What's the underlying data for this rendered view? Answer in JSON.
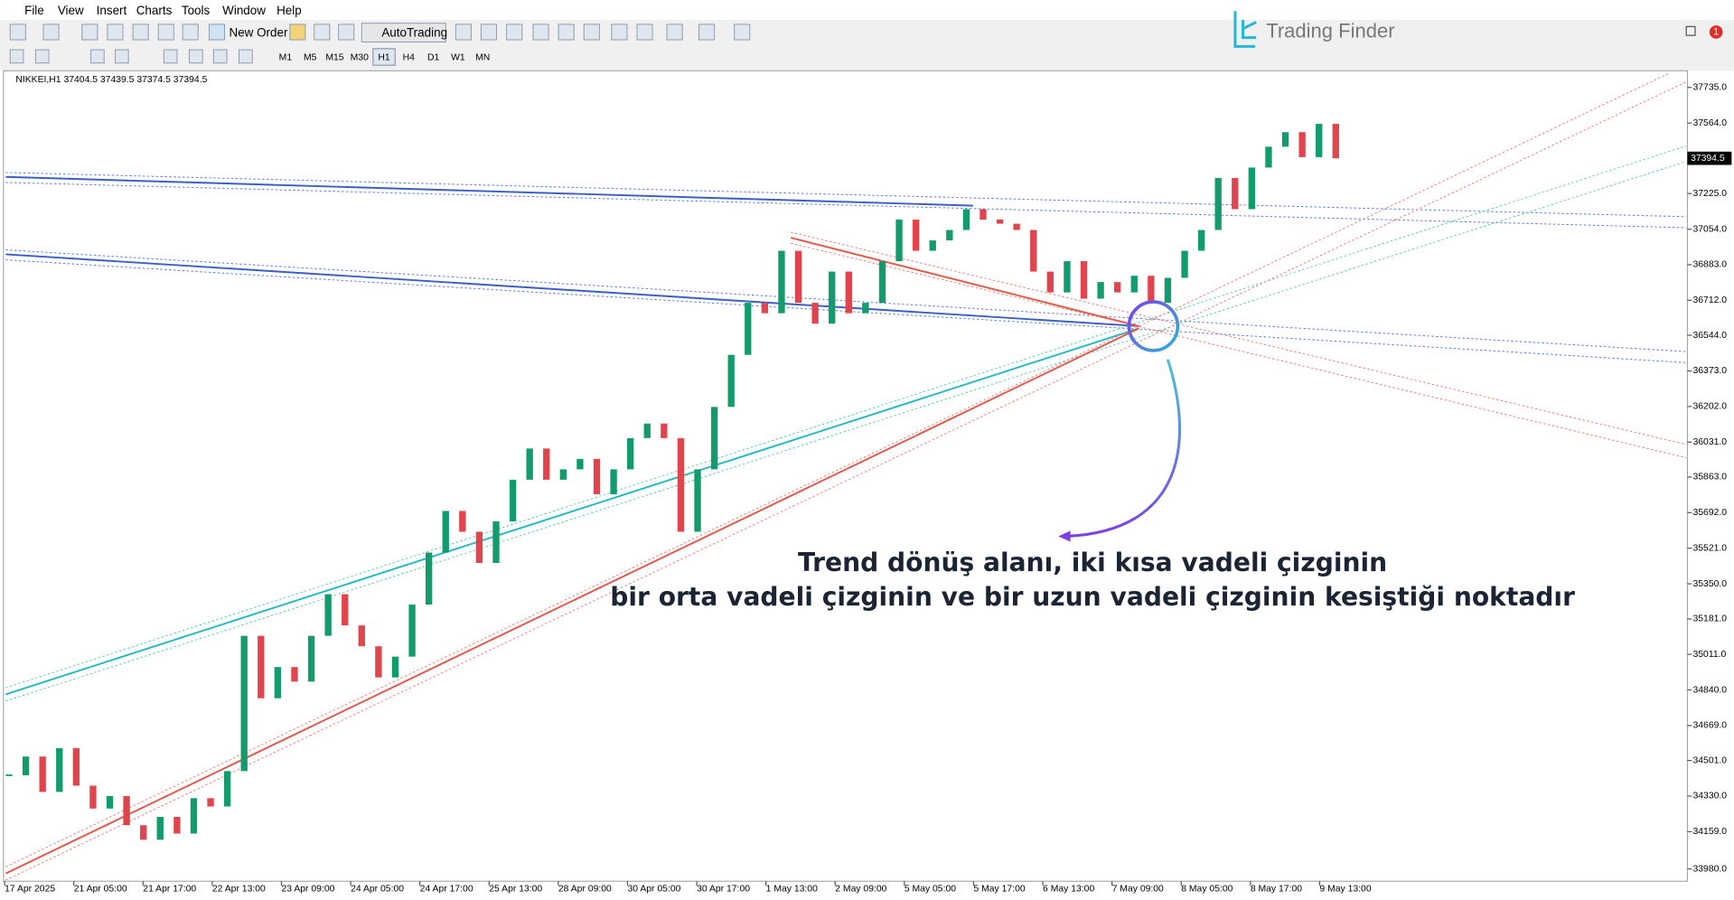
{
  "menu": [
    "File",
    "View",
    "Insert",
    "Charts",
    "Tools",
    "Window",
    "Help"
  ],
  "toolbar": {
    "new_order": "New Order",
    "autotrading": "AutoTrading"
  },
  "timeframes": [
    "M1",
    "M5",
    "M15",
    "M30",
    "H1",
    "H4",
    "D1",
    "W1",
    "MN"
  ],
  "brand": "Trading Finder",
  "notification_count": 1,
  "chart_data": {
    "type": "candlestick",
    "symbol_info": "NIKKEI,H1  37404.5 37439.5 37374.5 37394.5",
    "annotation": [
      "Trend dönüş alanı, iki kısa vadeli çizginin",
      "bir orta vadeli çizginin ve bir uzun vadeli çizginin kesiştiği noktadır"
    ],
    "categories": [
      "17 Apr 2025",
      "21 Apr 05:00",
      "21 Apr 17:00",
      "22 Apr 13:00",
      "23 Apr 09:00",
      "24 Apr 05:00",
      "24 Apr 17:00",
      "25 Apr 13:00",
      "28 Apr 09:00",
      "30 Apr 05:00",
      "30 Apr 17:00",
      "1 May 13:00",
      "2 May 09:00",
      "5 May 05:00",
      "5 May 17:00",
      "6 May 13:00",
      "7 May 09:00",
      "8 May 05:00",
      "8 May 17:00",
      "9 May 13:00"
    ],
    "closes": [
      34430,
      34520,
      34350,
      34560,
      34380,
      34270,
      34330,
      34190,
      34120,
      34230,
      34150,
      34320,
      34280,
      34450,
      35100,
      34800,
      34950,
      34880,
      35100,
      35300,
      35150,
      35050,
      34900,
      35000,
      35250,
      35500,
      35700,
      35600,
      35450,
      35650,
      35850,
      36000,
      35850,
      35900,
      35950,
      35780,
      35900,
      36050,
      36120,
      36050,
      35600,
      35900,
      36200,
      36450,
      36700,
      36650,
      36950,
      36700,
      36600,
      36850,
      36650,
      36700,
      36900,
      37100,
      36950,
      37000,
      37050,
      37150,
      37100,
      37080,
      37050,
      36850,
      36750,
      36900,
      36720,
      36800,
      36750,
      36830,
      36700,
      36820,
      36950,
      37050,
      37300,
      37150,
      37350,
      37450,
      37520,
      37400,
      37560,
      37394.5
    ],
    "up_color": "#139b6e",
    "down_color": "#e0454d",
    "ylim": [
      33921,
      37815
    ],
    "yticks": [
      {
        "value": 37735,
        "label": "37735.0"
      },
      {
        "value": 37564,
        "label": "37564.0"
      },
      {
        "value": 37225,
        "label": "37225.0"
      },
      {
        "value": 37054,
        "label": "37054.0"
      },
      {
        "value": 36883,
        "label": "36883.0"
      },
      {
        "value": 36712,
        "label": "36712.0"
      },
      {
        "value": 36544,
        "label": "36544.0"
      },
      {
        "value": 36373,
        "label": "36373.0"
      },
      {
        "value": 36202,
        "label": "36202.0"
      },
      {
        "value": 36031,
        "label": "36031.0"
      },
      {
        "value": 35863,
        "label": "35863.0"
      },
      {
        "value": 35692,
        "label": "35692.0"
      },
      {
        "value": 35521,
        "label": "35521.0"
      },
      {
        "value": 35350,
        "label": "35350.0"
      },
      {
        "value": 35181,
        "label": "35181.0"
      },
      {
        "value": 35011,
        "label": "35011.0"
      },
      {
        "value": 34840,
        "label": "34840.0"
      },
      {
        "value": 34669,
        "label": "34669.0"
      },
      {
        "value": 34501,
        "label": "34501.0"
      },
      {
        "value": 34330,
        "label": "34330.0"
      },
      {
        "value": 34159,
        "label": "34159.0"
      },
      {
        "value": 33980,
        "label": "33980.0"
      }
    ],
    "current_price": {
      "value": 37394.5,
      "label": "37394.5"
    }
  }
}
